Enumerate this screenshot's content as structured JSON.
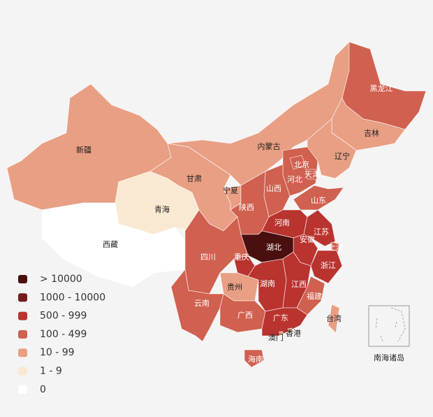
{
  "map": {
    "legend": [
      {
        "label": "> 10000",
        "color": "#4a0f0f"
      },
      {
        "label": "1000 - 10000",
        "color": "#741c1c"
      },
      {
        "label": "500 - 999",
        "color": "#b9332f"
      },
      {
        "label": "100 - 499",
        "color": "#d0604f"
      },
      {
        "label": "10 - 99",
        "color": "#e89f84"
      },
      {
        "label": "1 - 9",
        "color": "#fae9d2"
      },
      {
        "label": "0",
        "color": "#ffffff"
      }
    ],
    "regions": [
      {
        "name": "新疆",
        "color": "#e89f84"
      },
      {
        "name": "西藏",
        "color": "#ffffff"
      },
      {
        "name": "青海",
        "color": "#fae9d2"
      },
      {
        "name": "甘肃",
        "color": "#e89f84"
      },
      {
        "name": "内蒙古",
        "color": "#e89f84"
      },
      {
        "name": "黑龙江",
        "color": "#d0604f"
      },
      {
        "name": "吉林",
        "color": "#e89f84"
      },
      {
        "name": "辽宁",
        "color": "#e89f84"
      },
      {
        "name": "河北",
        "color": "#d0604f"
      },
      {
        "name": "北京",
        "color": "#d0604f"
      },
      {
        "name": "天津",
        "color": "#d0604f"
      },
      {
        "name": "山西",
        "color": "#d0604f"
      },
      {
        "name": "宁夏",
        "color": "#e89f84"
      },
      {
        "name": "陕西",
        "color": "#d0604f"
      },
      {
        "name": "山东",
        "color": "#d0604f"
      },
      {
        "name": "河南",
        "color": "#b9332f"
      },
      {
        "name": "江苏",
        "color": "#b9332f"
      },
      {
        "name": "安徽",
        "color": "#b9332f"
      },
      {
        "name": "湖北",
        "color": "#4a0f0f"
      },
      {
        "name": "上海",
        "color": "#d0604f"
      },
      {
        "name": "浙江",
        "color": "#b9332f"
      },
      {
        "name": "四川",
        "color": "#d0604f"
      },
      {
        "name": "重庆",
        "color": "#b9332f"
      },
      {
        "name": "贵州",
        "color": "#e89f84"
      },
      {
        "name": "云南",
        "color": "#d0604f"
      },
      {
        "name": "湖南",
        "color": "#b9332f"
      },
      {
        "name": "江西",
        "color": "#b9332f"
      },
      {
        "name": "福建",
        "color": "#d0604f"
      },
      {
        "name": "广西",
        "color": "#d0604f"
      },
      {
        "name": "广东",
        "color": "#b9332f"
      },
      {
        "name": "香港",
        "color": "#e89f84"
      },
      {
        "name": "澳门",
        "color": "#e89f84"
      },
      {
        "name": "海南",
        "color": "#d0604f"
      },
      {
        "name": "台湾",
        "color": "#e89f84"
      }
    ],
    "inset_label": "南海诸岛"
  }
}
